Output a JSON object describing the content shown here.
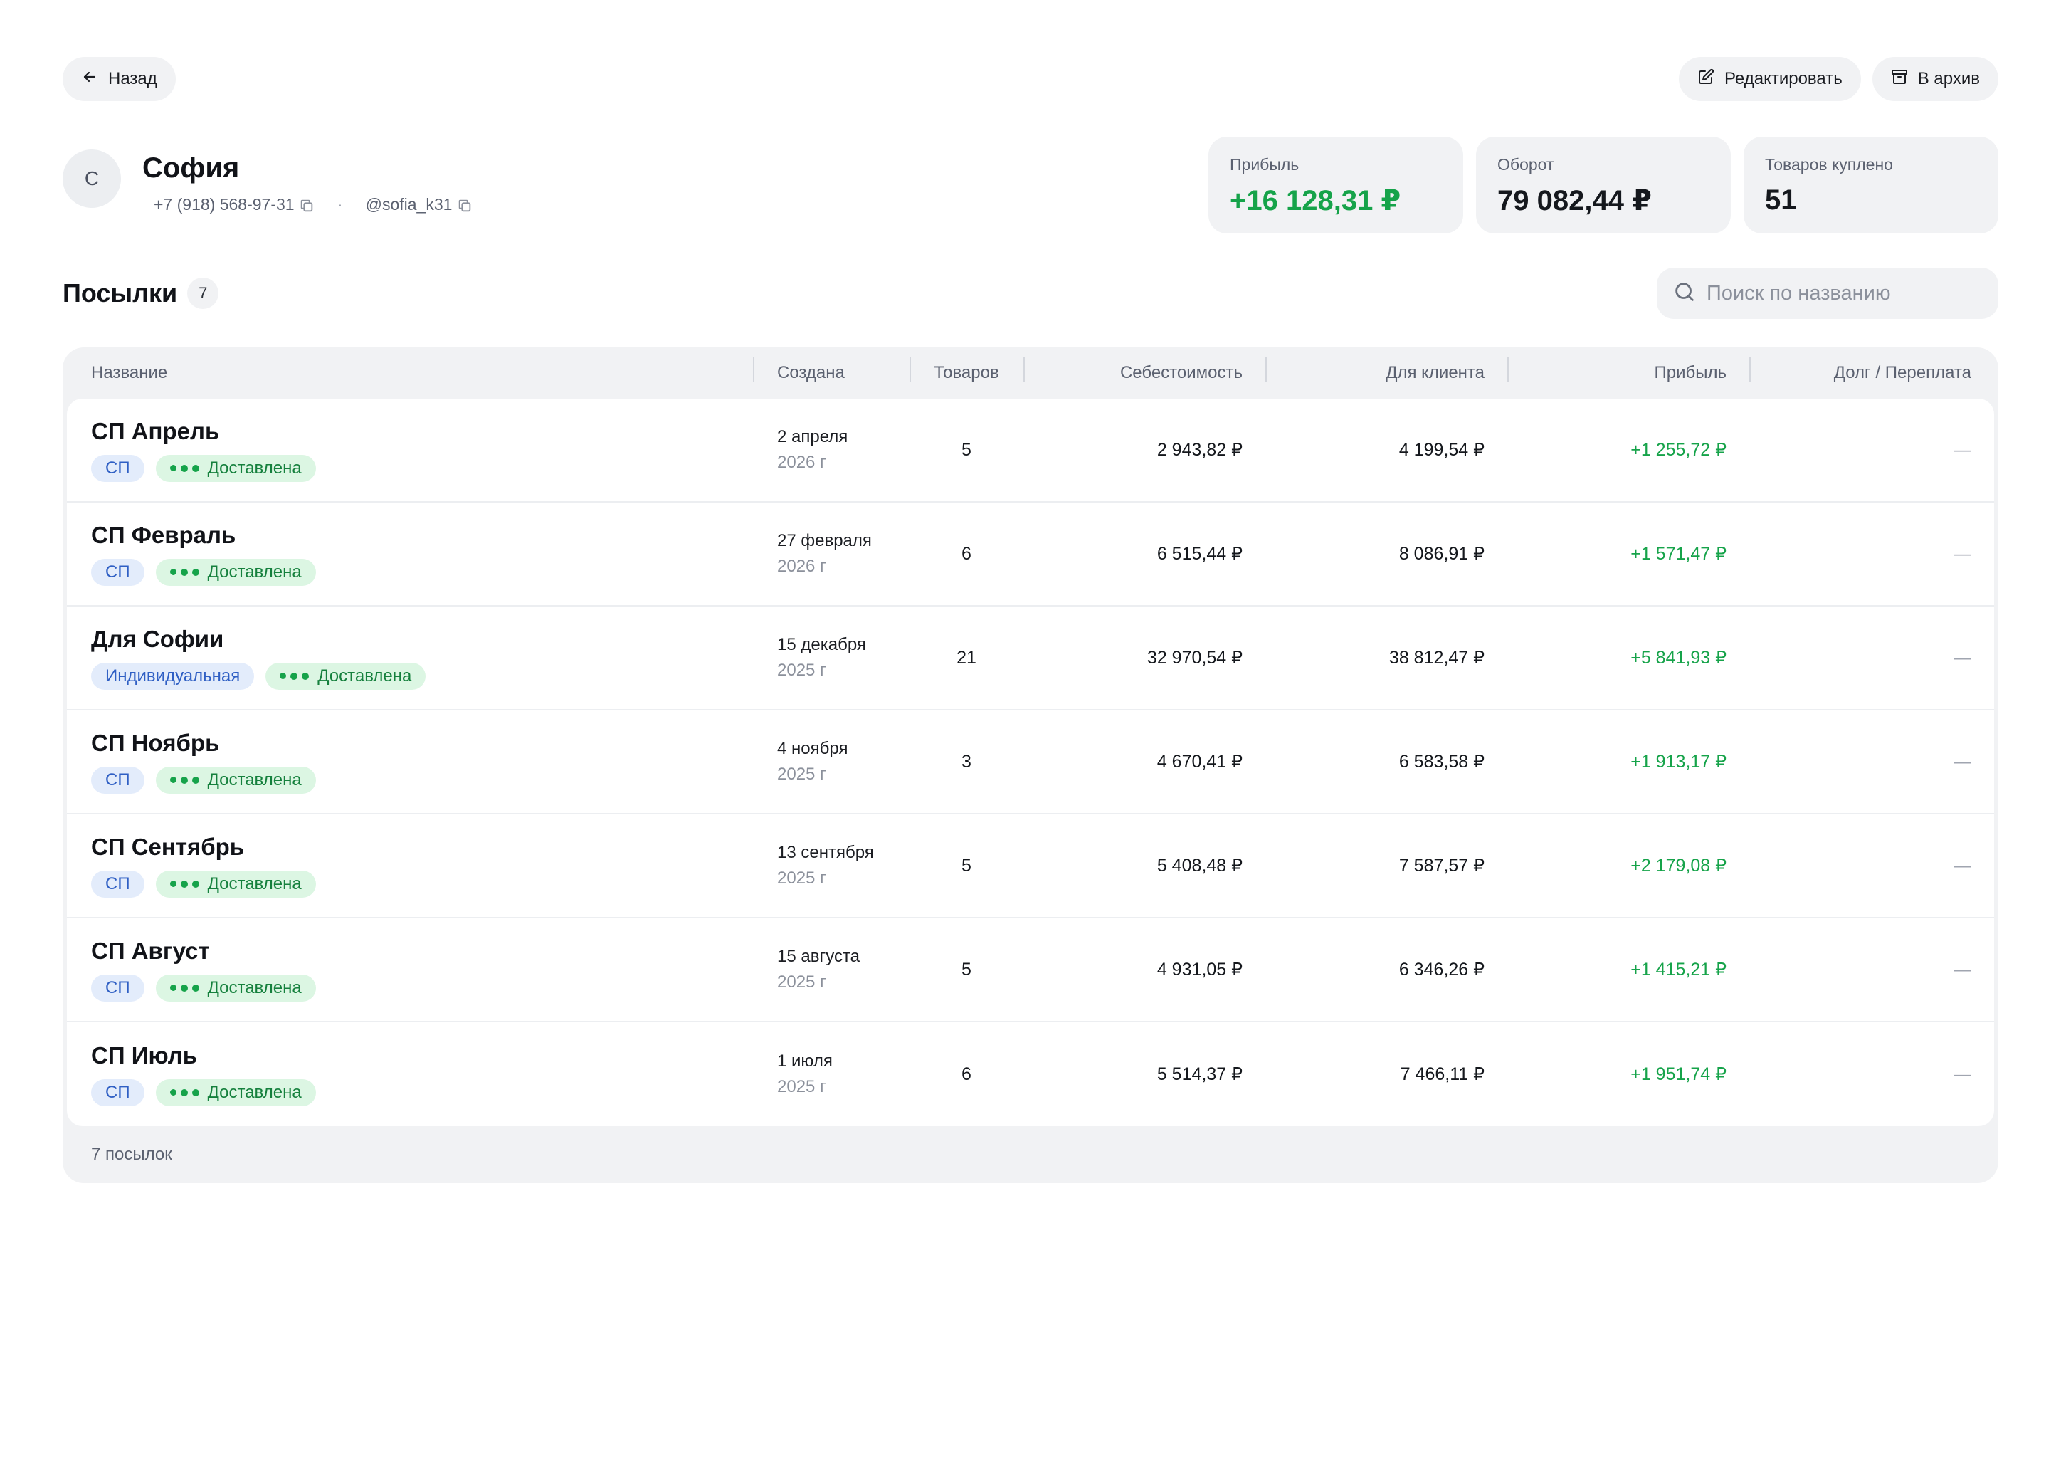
{
  "topbar": {
    "back_label": "Назад",
    "edit_label": "Редактировать",
    "archive_label": "В архив"
  },
  "client": {
    "avatar_letter": "С",
    "name": "София",
    "phone": "+7 (918) 568-97-31",
    "separator": "·",
    "username": "@sofia_k31"
  },
  "stats": [
    {
      "label": "Прибыль",
      "value": "+16 128,31 ₽",
      "accent": "#16a34a"
    },
    {
      "label": "Оборот",
      "value": "79 082,44 ₽"
    },
    {
      "label": "Товаров куплено",
      "value": "51"
    }
  ],
  "section": {
    "title": "Посылки",
    "count": "7",
    "search_placeholder": "Поиск по названию"
  },
  "table": {
    "columns": {
      "name": "Название",
      "created": "Создана",
      "qty": "Товаров",
      "cost": "Себестоимость",
      "client": "Для клиента",
      "profit": "Прибыль",
      "debt": "Долг / Переплата"
    },
    "rows": [
      {
        "title": "СП Апрель",
        "type": "СП",
        "status": "Доставлена",
        "date": "2 апреля",
        "year": "2026 г",
        "qty": "5",
        "cost": "2 943,82 ₽",
        "client": "4 199,54 ₽",
        "profit": "+1 255,72 ₽",
        "debt": "—"
      },
      {
        "title": "СП Февраль",
        "type": "СП",
        "status": "Доставлена",
        "date": "27 февраля",
        "year": "2026 г",
        "qty": "6",
        "cost": "6 515,44 ₽",
        "client": "8 086,91 ₽",
        "profit": "+1 571,47 ₽",
        "debt": "—"
      },
      {
        "title": "Для Софии",
        "type": "Индивидуальная",
        "status": "Доставлена",
        "date": "15 декабря",
        "year": "2025 г",
        "qty": "21",
        "cost": "32 970,54 ₽",
        "client": "38 812,47 ₽",
        "profit": "+5 841,93 ₽",
        "debt": "—"
      },
      {
        "title": "СП Ноябрь",
        "type": "СП",
        "status": "Доставлена",
        "date": "4 ноября",
        "year": "2025 г",
        "qty": "3",
        "cost": "4 670,41 ₽",
        "client": "6 583,58 ₽",
        "profit": "+1 913,17 ₽",
        "debt": "—"
      },
      {
        "title": "СП Сентябрь",
        "type": "СП",
        "status": "Доставлена",
        "date": "13 сентября",
        "year": "2025 г",
        "qty": "5",
        "cost": "5 408,48 ₽",
        "client": "7 587,57 ₽",
        "profit": "+2 179,08 ₽",
        "debt": "—"
      },
      {
        "title": "СП Август",
        "type": "СП",
        "status": "Доставлена",
        "date": "15 августа",
        "year": "2025 г",
        "qty": "5",
        "cost": "4 931,05 ₽",
        "client": "6 346,26 ₽",
        "profit": "+1 415,21 ₽",
        "debt": "—"
      },
      {
        "title": "СП Июль",
        "type": "СП",
        "status": "Доставлена",
        "date": "1 июля",
        "year": "2025 г",
        "qty": "6",
        "cost": "5 514,37 ₽",
        "client": "7 466,11 ₽",
        "profit": "+1 951,74 ₽",
        "debt": "—"
      }
    ],
    "footer": "7 посылок"
  },
  "icons": {
    "back": "arrow-left-icon",
    "edit": "pencil-square-icon",
    "archive": "archive-box-icon",
    "copy": "copy-icon",
    "search": "search-icon",
    "status": "three-dots-progress-icon"
  },
  "colors": {
    "accent_green": "#16a34a",
    "badge_blue_bg": "#e3ecfb",
    "badge_green_bg": "#dcf6e3",
    "surface": "#f1f2f4"
  }
}
